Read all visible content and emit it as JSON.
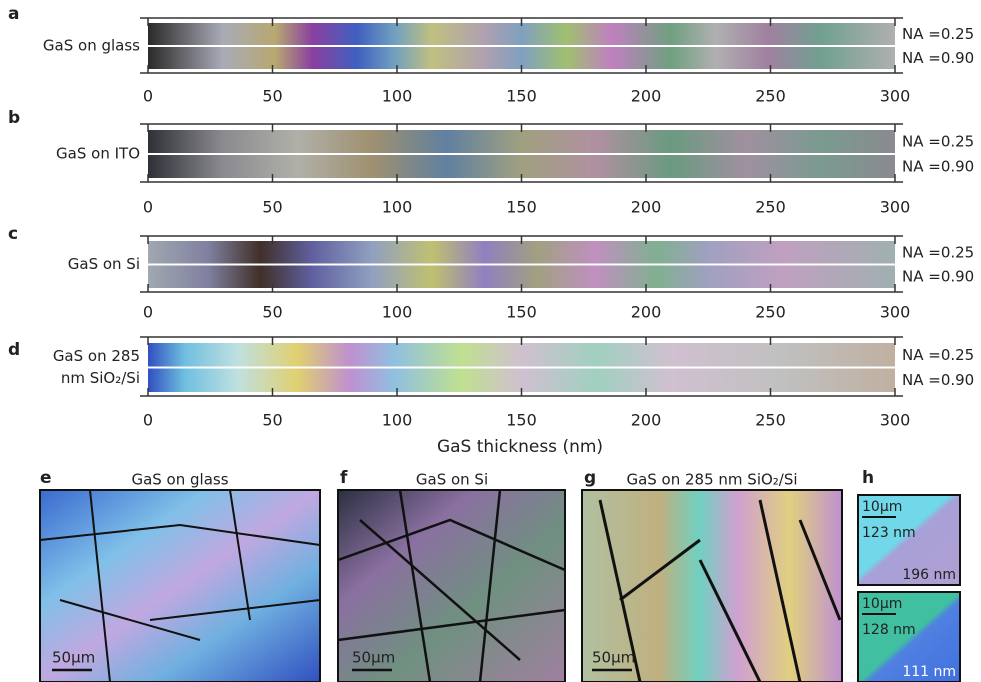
{
  "panels": [
    {
      "label": "a",
      "sample_lines": [
        "GaS on glass"
      ],
      "na": [
        "NA =0.25",
        "NA =0.90"
      ]
    },
    {
      "label": "b",
      "sample_lines": [
        "GaS on ITO"
      ],
      "na": [
        "NA =0.25",
        "NA =0.90"
      ]
    },
    {
      "label": "c",
      "sample_lines": [
        "GaS on Si"
      ],
      "na": [
        "NA =0.25",
        "NA =0.90"
      ]
    },
    {
      "label": "d",
      "sample_lines": [
        "GaS on 285",
        "nm SiO₂/Si"
      ],
      "na": [
        "NA =0.25",
        "NA =0.90"
      ]
    }
  ],
  "axis": {
    "lim": [
      0,
      300
    ],
    "ticks": [
      0,
      50,
      100,
      150,
      200,
      250,
      300
    ],
    "title": "GaS thickness (nm)"
  },
  "images": [
    {
      "label": "e",
      "title": "GaS on glass",
      "scale_bar": "50µm"
    },
    {
      "label": "f",
      "title": "GaS on Si",
      "scale_bar": "50µm"
    },
    {
      "label": "g",
      "title": "GaS on 285 nm SiO₂/Si",
      "scale_bar": "50µm"
    },
    {
      "label": "h",
      "insets": [
        {
          "scale_bar": "10µm",
          "thickness": [
            "123 nm",
            "196 nm"
          ]
        },
        {
          "scale_bar": "10µm",
          "thickness": [
            "128 nm",
            "111 nm"
          ]
        }
      ]
    }
  ]
}
